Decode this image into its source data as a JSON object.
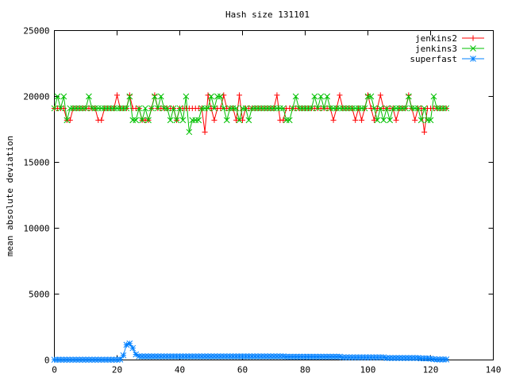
{
  "chart_data": {
    "type": "line",
    "title": "Hash size 131101",
    "xlabel": "",
    "ylabel": "mean absolute deviation",
    "xlim": [
      0,
      140
    ],
    "ylim": [
      0,
      25000
    ],
    "xticks": [
      0,
      20,
      40,
      60,
      80,
      100,
      120,
      140
    ],
    "yticks": [
      0,
      5000,
      10000,
      15000,
      20000,
      25000
    ],
    "grid": false,
    "legend_position": "top-right",
    "series": [
      {
        "name": "jenkins2",
        "color": "#ff0000",
        "marker": "plus",
        "x": [
          0,
          1,
          2,
          3,
          4,
          5,
          6,
          7,
          8,
          9,
          10,
          11,
          12,
          13,
          14,
          15,
          16,
          17,
          18,
          19,
          20,
          21,
          22,
          23,
          24,
          25,
          26,
          27,
          28,
          29,
          30,
          31,
          32,
          33,
          34,
          35,
          36,
          37,
          38,
          39,
          40,
          41,
          42,
          43,
          44,
          45,
          46,
          47,
          48,
          49,
          50,
          51,
          52,
          53,
          54,
          55,
          56,
          57,
          58,
          59,
          60,
          61,
          62,
          63,
          64,
          65,
          66,
          67,
          68,
          69,
          70,
          71,
          72,
          73,
          74,
          75,
          76,
          77,
          78,
          79,
          80,
          81,
          82,
          83,
          84,
          85,
          86,
          87,
          88,
          89,
          90,
          91,
          92,
          93,
          94,
          95,
          96,
          97,
          98,
          99,
          100,
          101,
          102,
          103,
          104,
          105,
          106,
          107,
          108,
          109,
          110,
          111,
          112,
          113,
          114,
          115,
          116,
          117,
          118,
          119,
          120,
          121,
          122,
          123,
          124,
          125
        ],
        "values": [
          19100,
          19100,
          19100,
          19100,
          18200,
          18200,
          19100,
          19100,
          19100,
          19100,
          19100,
          19100,
          19100,
          19100,
          18200,
          18200,
          19100,
          19100,
          19100,
          19100,
          20100,
          19100,
          19100,
          19100,
          20100,
          19100,
          19100,
          19100,
          18200,
          18200,
          18200,
          19100,
          20100,
          19100,
          19100,
          19100,
          19100,
          19100,
          19100,
          18200,
          19100,
          19100,
          19100,
          19100,
          19100,
          19100,
          19100,
          19100,
          17300,
          20100,
          19100,
          18200,
          19100,
          19100,
          20100,
          19100,
          19100,
          19100,
          18200,
          20100,
          18200,
          19100,
          19100,
          19100,
          19100,
          19100,
          19100,
          19100,
          19100,
          19100,
          19100,
          20100,
          18200,
          18200,
          19100,
          19100,
          19100,
          19100,
          19100,
          19100,
          19100,
          19100,
          19100,
          19100,
          19100,
          19100,
          19100,
          19100,
          19100,
          18200,
          19100,
          20100,
          19100,
          19100,
          19100,
          19100,
          18200,
          19100,
          18200,
          19100,
          20100,
          19100,
          18200,
          19100,
          20100,
          19100,
          19100,
          19100,
          19100,
          18200,
          19100,
          19100,
          19100,
          20100,
          19100,
          18200,
          19100,
          19100,
          17300,
          19100,
          19100,
          19100,
          19100,
          19100,
          19100,
          19100
        ]
      },
      {
        "name": "jenkins3",
        "color": "#00c000",
        "marker": "cross",
        "x": [
          0,
          1,
          2,
          3,
          4,
          5,
          6,
          7,
          8,
          9,
          10,
          11,
          12,
          13,
          14,
          15,
          16,
          17,
          18,
          19,
          20,
          21,
          22,
          23,
          24,
          25,
          26,
          27,
          28,
          29,
          30,
          31,
          32,
          33,
          34,
          35,
          36,
          37,
          38,
          39,
          40,
          41,
          42,
          43,
          44,
          45,
          46,
          47,
          48,
          49,
          50,
          51,
          52,
          53,
          54,
          55,
          56,
          57,
          58,
          59,
          60,
          61,
          62,
          63,
          64,
          65,
          66,
          67,
          68,
          69,
          70,
          71,
          72,
          73,
          74,
          75,
          76,
          77,
          78,
          79,
          80,
          81,
          82,
          83,
          84,
          85,
          86,
          87,
          88,
          89,
          90,
          91,
          92,
          93,
          94,
          95,
          96,
          97,
          98,
          99,
          100,
          101,
          102,
          103,
          104,
          105,
          106,
          107,
          108,
          109,
          110,
          111,
          112,
          113,
          114,
          115,
          116,
          117,
          118,
          119,
          120,
          121,
          122,
          123,
          124,
          125
        ],
        "values": [
          19100,
          20000,
          19100,
          20000,
          18200,
          19100,
          19100,
          19100,
          19100,
          19100,
          19100,
          20000,
          19100,
          19100,
          19100,
          19100,
          19100,
          19100,
          19100,
          19100,
          19100,
          19100,
          19100,
          19100,
          20000,
          18200,
          18200,
          19100,
          18200,
          19100,
          18200,
          19100,
          20000,
          19100,
          20000,
          19100,
          19100,
          18200,
          19100,
          18200,
          19100,
          18200,
          20000,
          17300,
          18200,
          18200,
          18200,
          19100,
          19100,
          19100,
          20000,
          19100,
          20000,
          20000,
          19100,
          18200,
          19100,
          19100,
          19100,
          18200,
          19100,
          19100,
          18200,
          19100,
          19100,
          19100,
          19100,
          19100,
          19100,
          19100,
          19100,
          19100,
          19100,
          19100,
          18200,
          18200,
          19100,
          20000,
          19100,
          19100,
          19100,
          19100,
          19100,
          20000,
          19100,
          20000,
          19100,
          20000,
          19100,
          19100,
          19100,
          19100,
          19100,
          19100,
          19100,
          19100,
          19100,
          19100,
          19100,
          19100,
          20000,
          20000,
          19100,
          18200,
          19100,
          18200,
          19100,
          18200,
          19100,
          19100,
          19100,
          19100,
          19100,
          20000,
          19100,
          19100,
          19100,
          18200,
          19100,
          18200,
          18200,
          20000,
          19100,
          19100,
          19100,
          19100
        ]
      },
      {
        "name": "superfast",
        "color": "#0080ff",
        "marker": "star",
        "x": [
          0,
          1,
          2,
          3,
          4,
          5,
          6,
          7,
          8,
          9,
          10,
          11,
          12,
          13,
          14,
          15,
          16,
          17,
          18,
          19,
          20,
          21,
          22,
          23,
          24,
          25,
          26,
          27,
          28,
          29,
          30,
          31,
          32,
          33,
          34,
          35,
          36,
          37,
          38,
          39,
          40,
          41,
          42,
          43,
          44,
          45,
          46,
          47,
          48,
          49,
          50,
          51,
          52,
          53,
          54,
          55,
          56,
          57,
          58,
          59,
          60,
          61,
          62,
          63,
          64,
          65,
          66,
          67,
          68,
          69,
          70,
          71,
          72,
          73,
          74,
          75,
          76,
          77,
          78,
          79,
          80,
          81,
          82,
          83,
          84,
          85,
          86,
          87,
          88,
          89,
          90,
          91,
          92,
          93,
          94,
          95,
          96,
          97,
          98,
          99,
          100,
          101,
          102,
          103,
          104,
          105,
          106,
          107,
          108,
          109,
          110,
          111,
          112,
          113,
          114,
          115,
          116,
          117,
          118,
          119,
          120,
          121,
          122,
          123,
          124,
          125
        ],
        "values": [
          20,
          20,
          20,
          20,
          20,
          20,
          20,
          20,
          20,
          20,
          20,
          20,
          20,
          20,
          20,
          20,
          20,
          20,
          20,
          20,
          20,
          40,
          350,
          1150,
          1250,
          900,
          420,
          280,
          270,
          270,
          270,
          270,
          270,
          270,
          270,
          270,
          270,
          270,
          270,
          270,
          270,
          270,
          270,
          270,
          270,
          270,
          270,
          270,
          270,
          270,
          270,
          270,
          270,
          270,
          270,
          270,
          270,
          270,
          270,
          270,
          270,
          270,
          270,
          270,
          270,
          270,
          270,
          270,
          270,
          270,
          270,
          270,
          270,
          270,
          250,
          250,
          250,
          250,
          250,
          250,
          250,
          250,
          250,
          250,
          250,
          250,
          250,
          250,
          250,
          250,
          250,
          250,
          200,
          200,
          200,
          200,
          200,
          200,
          200,
          200,
          200,
          200,
          200,
          200,
          200,
          200,
          150,
          150,
          150,
          150,
          150,
          150,
          150,
          150,
          150,
          150,
          150,
          120,
          120,
          120,
          100,
          60,
          40,
          40,
          40,
          40
        ]
      }
    ]
  }
}
